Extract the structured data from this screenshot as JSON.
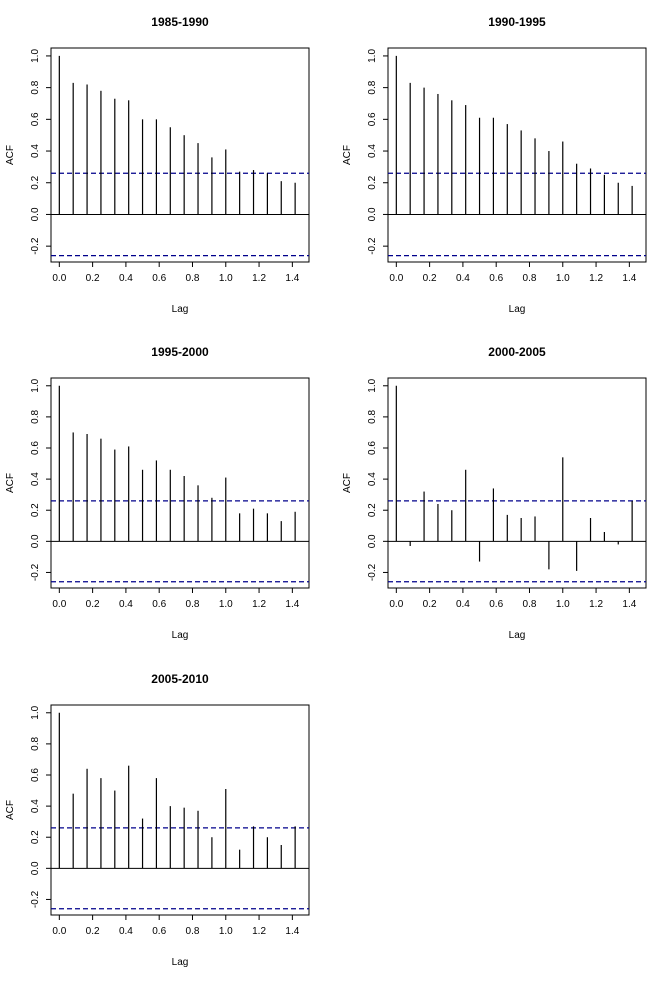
{
  "chart_data": [
    {
      "type": "bar",
      "title": "1985-1990",
      "xlabel": "Lag",
      "ylabel": "ACF",
      "xlim": [
        -0.05,
        1.5
      ],
      "ylim": [
        -0.3,
        1.05
      ],
      "xticks": [
        "0.0",
        "0.2",
        "0.4",
        "0.6",
        "0.8",
        "1.0",
        "1.2",
        "1.4"
      ],
      "yticks": [
        "-0.2",
        "0.0",
        "0.2",
        "0.4",
        "0.6",
        "0.8",
        "1.0"
      ],
      "conf_limit": 0.26,
      "x": [
        0,
        0.0833,
        0.1667,
        0.25,
        0.3333,
        0.4167,
        0.5,
        0.5833,
        0.6667,
        0.75,
        0.8333,
        0.9167,
        1.0,
        1.0833,
        1.1667,
        1.25,
        1.3333,
        1.4167
      ],
      "values": [
        1.0,
        0.83,
        0.82,
        0.78,
        0.73,
        0.72,
        0.6,
        0.6,
        0.55,
        0.5,
        0.45,
        0.36,
        0.41,
        0.27,
        0.28,
        0.26,
        0.21,
        0.2
      ]
    },
    {
      "type": "bar",
      "title": "1990-1995",
      "xlabel": "Lag",
      "ylabel": "ACF",
      "xlim": [
        -0.05,
        1.5
      ],
      "ylim": [
        -0.3,
        1.05
      ],
      "xticks": [
        "0.0",
        "0.2",
        "0.4",
        "0.6",
        "0.8",
        "1.0",
        "1.2",
        "1.4"
      ],
      "yticks": [
        "-0.2",
        "0.0",
        "0.2",
        "0.4",
        "0.6",
        "0.8",
        "1.0"
      ],
      "conf_limit": 0.26,
      "x": [
        0,
        0.0833,
        0.1667,
        0.25,
        0.3333,
        0.4167,
        0.5,
        0.5833,
        0.6667,
        0.75,
        0.8333,
        0.9167,
        1.0,
        1.0833,
        1.1667,
        1.25,
        1.3333,
        1.4167
      ],
      "values": [
        1.0,
        0.83,
        0.8,
        0.76,
        0.72,
        0.69,
        0.61,
        0.61,
        0.57,
        0.53,
        0.48,
        0.4,
        0.46,
        0.32,
        0.29,
        0.25,
        0.2,
        0.18
      ]
    },
    {
      "type": "bar",
      "title": "1995-2000",
      "xlabel": "Lag",
      "ylabel": "ACF",
      "xlim": [
        -0.05,
        1.5
      ],
      "ylim": [
        -0.3,
        1.05
      ],
      "xticks": [
        "0.0",
        "0.2",
        "0.4",
        "0.6",
        "0.8",
        "1.0",
        "1.2",
        "1.4"
      ],
      "yticks": [
        "-0.2",
        "0.0",
        "0.2",
        "0.4",
        "0.6",
        "0.8",
        "1.0"
      ],
      "conf_limit": 0.26,
      "x": [
        0,
        0.0833,
        0.1667,
        0.25,
        0.3333,
        0.4167,
        0.5,
        0.5833,
        0.6667,
        0.75,
        0.8333,
        0.9167,
        1.0,
        1.0833,
        1.1667,
        1.25,
        1.3333,
        1.4167
      ],
      "values": [
        1.0,
        0.7,
        0.69,
        0.66,
        0.59,
        0.61,
        0.46,
        0.52,
        0.46,
        0.42,
        0.36,
        0.28,
        0.41,
        0.18,
        0.21,
        0.18,
        0.13,
        0.19
      ]
    },
    {
      "type": "bar",
      "title": "2000-2005",
      "xlabel": "Lag",
      "ylabel": "ACF",
      "xlim": [
        -0.05,
        1.5
      ],
      "ylim": [
        -0.3,
        1.05
      ],
      "xticks": [
        "0.0",
        "0.2",
        "0.4",
        "0.6",
        "0.8",
        "1.0",
        "1.2",
        "1.4"
      ],
      "yticks": [
        "-0.2",
        "0.0",
        "0.2",
        "0.4",
        "0.6",
        "0.8",
        "1.0"
      ],
      "conf_limit": 0.26,
      "x": [
        0,
        0.0833,
        0.1667,
        0.25,
        0.3333,
        0.4167,
        0.5,
        0.5833,
        0.6667,
        0.75,
        0.8333,
        0.9167,
        1.0,
        1.0833,
        1.1667,
        1.25,
        1.3333,
        1.4167
      ],
      "values": [
        1.0,
        -0.03,
        0.32,
        0.24,
        0.2,
        0.46,
        -0.13,
        0.34,
        0.17,
        0.15,
        0.16,
        -0.18,
        0.54,
        -0.19,
        0.15,
        0.06,
        -0.02,
        0.26
      ]
    },
    {
      "type": "bar",
      "title": "2005-2010",
      "xlabel": "Lag",
      "ylabel": "ACF",
      "xlim": [
        -0.05,
        1.5
      ],
      "ylim": [
        -0.3,
        1.05
      ],
      "xticks": [
        "0.0",
        "0.2",
        "0.4",
        "0.6",
        "0.8",
        "1.0",
        "1.2",
        "1.4"
      ],
      "yticks": [
        "-0.2",
        "0.0",
        "0.2",
        "0.4",
        "0.6",
        "0.8",
        "1.0"
      ],
      "conf_limit": 0.26,
      "x": [
        0,
        0.0833,
        0.1667,
        0.25,
        0.3333,
        0.4167,
        0.5,
        0.5833,
        0.6667,
        0.75,
        0.8333,
        0.9167,
        1.0,
        1.0833,
        1.1667,
        1.25,
        1.3333,
        1.4167
      ],
      "values": [
        1.0,
        0.48,
        0.64,
        0.58,
        0.5,
        0.66,
        0.32,
        0.58,
        0.4,
        0.39,
        0.37,
        0.2,
        0.51,
        0.12,
        0.27,
        0.2,
        0.15,
        0.27
      ]
    }
  ],
  "style": {
    "line_color": "#000000",
    "conf_color": "#00008b",
    "background": "#ffffff"
  }
}
